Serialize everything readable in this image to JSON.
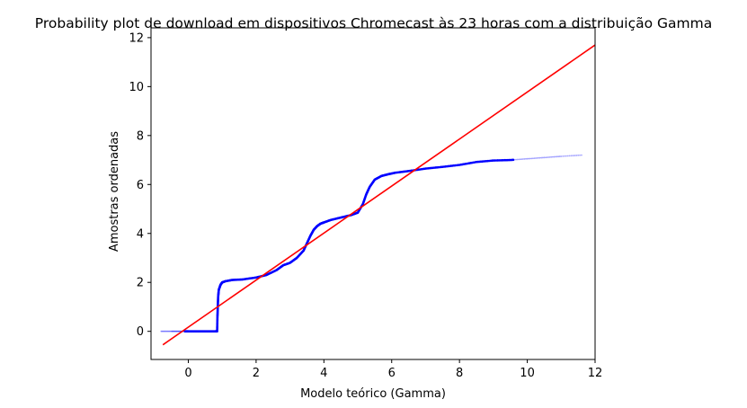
{
  "chart_data": {
    "type": "scatter",
    "title": "Probability plot de download em dispositivos Chromecast às 23 horas com a distribuição Gamma",
    "xlabel": "Modelo teórico (Gamma)",
    "ylabel": "Amostras ordenadas",
    "xlim": [
      -1.1,
      12
    ],
    "ylim": [
      -1.15,
      12.4
    ],
    "xticks": [
      0,
      2,
      4,
      6,
      8,
      10,
      12
    ],
    "yticks": [
      0,
      2,
      4,
      6,
      8,
      10,
      12
    ],
    "grid": false,
    "colors": {
      "points": "#0000ff",
      "fit_line": "#ff0000"
    },
    "series": [
      {
        "kind": "scatter",
        "x": [
          -0.8,
          -0.5,
          -0.3,
          -0.1,
          0.0,
          0.2,
          0.4,
          0.6,
          0.8,
          0.85,
          0.86,
          0.87,
          0.88,
          0.9,
          0.95,
          1.0,
          1.1,
          1.3,
          1.6,
          2.0,
          2.3,
          2.6,
          2.8,
          3.0,
          3.2,
          3.4,
          3.5,
          3.6,
          3.7,
          3.8,
          3.9,
          4.0,
          4.2,
          4.5,
          4.8,
          5.0,
          5.15,
          5.25,
          5.35,
          5.5,
          5.7,
          5.9,
          6.1,
          6.5,
          7.0,
          7.5,
          8.0,
          8.5,
          9.0,
          9.5,
          10.0,
          10.5,
          11.0,
          11.6
        ],
        "y": [
          0.0,
          0.0,
          0.0,
          0.0,
          0.0,
          0.0,
          0.0,
          0.0,
          0.0,
          0.0,
          0.6,
          1.0,
          1.4,
          1.7,
          1.9,
          2.0,
          2.05,
          2.1,
          2.12,
          2.2,
          2.3,
          2.5,
          2.7,
          2.8,
          3.0,
          3.3,
          3.6,
          3.9,
          4.15,
          4.3,
          4.4,
          4.45,
          4.55,
          4.65,
          4.75,
          4.85,
          5.2,
          5.6,
          5.9,
          6.2,
          6.35,
          6.42,
          6.48,
          6.55,
          6.65,
          6.72,
          6.8,
          6.92,
          6.98,
          7.0,
          7.05,
          7.1,
          7.15,
          7.2
        ]
      },
      {
        "kind": "line",
        "x": [
          -0.75,
          12.0
        ],
        "y": [
          -0.55,
          11.7
        ]
      }
    ]
  }
}
